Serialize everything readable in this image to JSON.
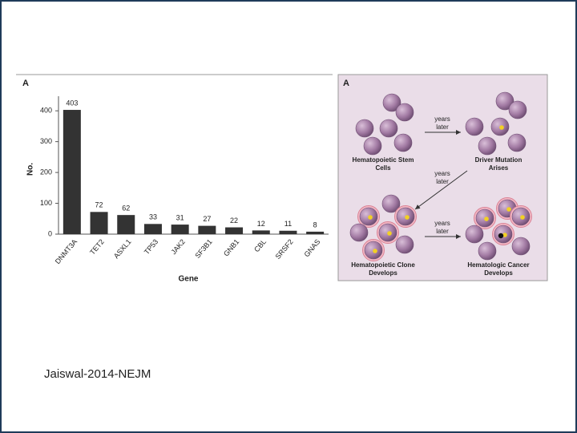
{
  "chart_data": {
    "type": "bar",
    "panel_label": "A",
    "y_label": "No.",
    "x_label": "Gene",
    "categories": [
      "DNMT3A",
      "TET2",
      "ASXL1",
      "TP53",
      "JAK2",
      "SF3B1",
      "GNB1",
      "CBL",
      "SRSF2",
      "GNAS"
    ],
    "values": [
      403,
      72,
      62,
      33,
      31,
      27,
      22,
      12,
      11,
      8
    ],
    "color": "#333333",
    "ylim": [
      0,
      420
    ],
    "yticks": [
      0,
      100,
      200,
      300,
      400
    ],
    "grid": false
  },
  "diagram": {
    "panel_label": "A",
    "arrow_labels": [
      "years later",
      "years later",
      "years later"
    ],
    "stages": [
      "Hematopoietic Stem Cells",
      "Driver Mutation Arises",
      "Hematopoietic Clone Develops",
      "Hematologic Cancer Develops"
    ]
  },
  "caption": "Jaiswal-2014-NEJM"
}
